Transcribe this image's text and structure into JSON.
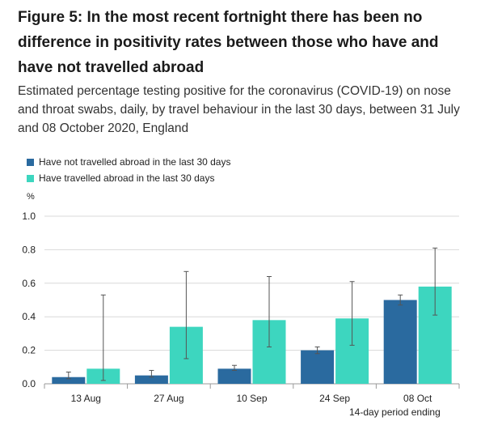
{
  "title": "Figure 5: In the most recent fortnight there has been no difference in positivity rates between those who have and have not travelled abroad",
  "subtitle": "Estimated percentage testing positive for the coronavirus (COVID-19) on nose and throat swabs, daily, by travel behaviour in the last 30 days, between 31 July and 08 October 2020, England",
  "chart_data": {
    "type": "bar",
    "ylabel": "%",
    "xlabel": "14-day period ending",
    "ylim": [
      0,
      1.0
    ],
    "yticks": [
      "0.0",
      "0.2",
      "0.4",
      "0.6",
      "0.8",
      "1.0"
    ],
    "grid": true,
    "legend_position": "top-left",
    "categories": [
      "13 Aug",
      "27 Aug",
      "10 Sep",
      "24 Sep",
      "08 Oct"
    ],
    "series": [
      {
        "name": "Have not travelled abroad in the last 30 days",
        "color": "#2a6a9f",
        "values": [
          0.04,
          0.05,
          0.09,
          0.2,
          0.5
        ],
        "lower": [
          0.03,
          0.04,
          0.08,
          0.18,
          0.47
        ],
        "upper": [
          0.07,
          0.08,
          0.11,
          0.22,
          0.53
        ]
      },
      {
        "name": "Have travelled abroad in the last 30 days",
        "color": "#3dd6bf",
        "values": [
          0.09,
          0.34,
          0.38,
          0.39,
          0.58
        ],
        "lower": [
          0.02,
          0.15,
          0.22,
          0.23,
          0.41
        ],
        "upper": [
          0.53,
          0.67,
          0.64,
          0.61,
          0.81
        ]
      }
    ]
  }
}
